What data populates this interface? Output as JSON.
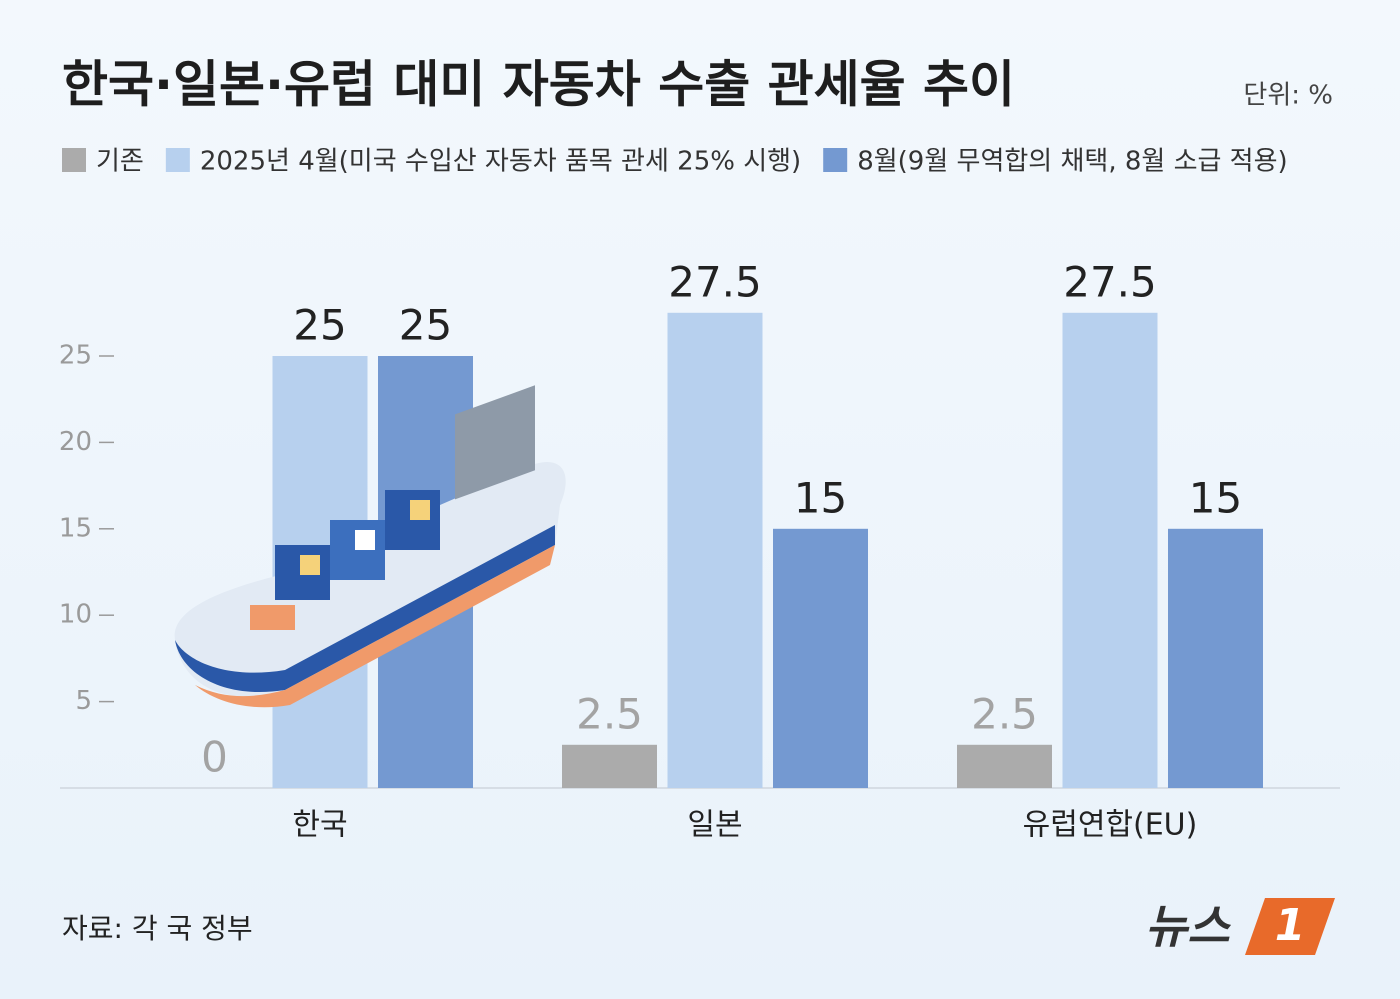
{
  "chart_data": {
    "type": "bar",
    "title": "한국·일본·유럽 대미 자동차 수출 관세율 추이",
    "unit": "단위: %",
    "source": "자료: 각 국 정부",
    "logo_text": "뉴스",
    "logo_number": "1",
    "categories": [
      "한국",
      "일본",
      "유럽연합(EU)"
    ],
    "series": [
      {
        "name": "기존",
        "color": "#ababab",
        "label_color": "#a3a3a3",
        "values": [
          0,
          2.5,
          2.5
        ]
      },
      {
        "name": "2025년 4월(미국 수입산 자동차 품목 관세 25% 시행)",
        "color": "#b7d0ee",
        "label_color": "#222222",
        "values": [
          25,
          27.5,
          27.5
        ]
      },
      {
        "name": "8월(9월 무역합의 채택, 8월 소급 적용)",
        "color": "#7499d1",
        "label_color": "#222222",
        "values": [
          25,
          15,
          15
        ]
      }
    ],
    "ylim": [
      0,
      30
    ],
    "yticks": [
      5,
      10,
      15,
      20,
      25
    ],
    "grid": false
  }
}
